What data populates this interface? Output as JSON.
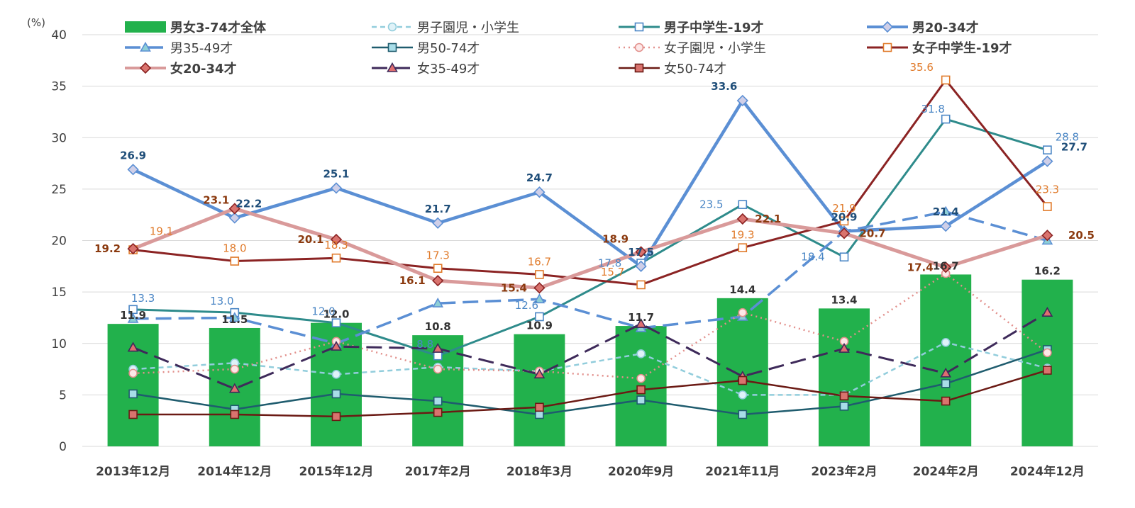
{
  "chart_data": {
    "type": "bar",
    "y_unit": "(%)",
    "categories": [
      "2013年12月",
      "2014年12月",
      "2015年12月",
      "2017年2月",
      "2018年3月",
      "2020年9月",
      "2021年11月",
      "2023年2月",
      "2024年2月",
      "2024年12月"
    ],
    "ylim": [
      0,
      40
    ],
    "yticks": [
      0,
      5,
      10,
      15,
      20,
      25,
      30,
      35,
      40
    ],
    "grid": true,
    "legend_position": "top",
    "series": [
      {
        "name": "男女3-74才全体",
        "kind": "bar",
        "color": "#22b14c",
        "label_color": "#333333",
        "label_bold": true,
        "legend_bold": true,
        "values": [
          11.9,
          11.5,
          12.0,
          10.8,
          10.9,
          11.7,
          14.4,
          13.4,
          16.7,
          16.2
        ],
        "labeled": [
          true,
          true,
          true,
          true,
          true,
          true,
          true,
          true,
          true,
          true
        ]
      },
      {
        "name": "男子園児・小学生",
        "kind": "line",
        "color": "#92cddc",
        "dash": "short",
        "marker": "circle",
        "marker_fill": "#dff2f8",
        "width": 2.5,
        "values": [
          7.5,
          8.1,
          7.0,
          7.7,
          7.3,
          9.0,
          5.0,
          5.0,
          10.1,
          7.6
        ]
      },
      {
        "name": "男子中学生-19才",
        "kind": "line",
        "color": "#2e8b8b",
        "dash": "solid",
        "marker": "square",
        "marker_fill": "#ffffff",
        "marker_stroke": "#4a86c5",
        "width": 3,
        "label_color": "#4a86c5",
        "legend_bold": true,
        "legend_color": "#4a86c5",
        "values": [
          13.3,
          13.0,
          12.0,
          8.8,
          12.6,
          17.8,
          23.5,
          18.4,
          31.8,
          28.8
        ],
        "labeled": [
          true,
          true,
          true,
          true,
          true,
          true,
          true,
          true,
          true,
          true
        ]
      },
      {
        "name": "男20-34才",
        "kind": "line",
        "color": "#5b8fd4",
        "dash": "solid",
        "marker": "diamond",
        "marker_fill": "#cfcfe8",
        "width": 4.5,
        "label_color": "#1f4e79",
        "label_bold": true,
        "legend_bold": true,
        "legend_color": "#1f4e79",
        "values": [
          26.9,
          22.2,
          25.1,
          21.7,
          24.7,
          17.5,
          33.6,
          20.9,
          21.4,
          27.7
        ],
        "labeled": [
          true,
          true,
          true,
          true,
          true,
          true,
          true,
          true,
          true,
          true
        ]
      },
      {
        "name": "男35-49才",
        "kind": "line",
        "color": "#5b8fd4",
        "dash": "long",
        "marker": "triangle",
        "marker_fill": "#8ecfd6",
        "width": 3.5,
        "values": [
          12.4,
          12.5,
          10.0,
          13.9,
          14.3,
          11.5,
          12.6,
          20.9,
          22.8,
          20.0
        ]
      },
      {
        "name": "男50-74才",
        "kind": "line",
        "color": "#1f5c6e",
        "dash": "solid",
        "marker": "square",
        "marker_fill": "#a8dde8",
        "width": 2.5,
        "values": [
          5.1,
          3.6,
          5.1,
          4.4,
          3.1,
          4.5,
          3.1,
          3.9,
          6.1,
          9.4
        ]
      },
      {
        "name": "女子園児・小学生",
        "kind": "line",
        "color": "#e2908c",
        "dash": "dot",
        "marker": "circle",
        "marker_fill": "#fde8e8",
        "width": 2.5,
        "values": [
          7.1,
          7.5,
          10.2,
          7.5,
          7.3,
          6.6,
          13.0,
          10.2,
          16.8,
          9.1
        ]
      },
      {
        "name": "女子中学生-19才",
        "kind": "line",
        "color": "#8b2323",
        "dash": "solid",
        "marker": "square",
        "marker_fill": "#ffffff",
        "marker_stroke": "#e07a2a",
        "width": 3,
        "label_color": "#e07a2a",
        "legend_bold": true,
        "values": [
          19.1,
          18.0,
          18.3,
          17.3,
          16.7,
          15.7,
          19.3,
          21.9,
          35.6,
          23.3
        ],
        "labeled": [
          true,
          true,
          true,
          true,
          true,
          true,
          true,
          true,
          true,
          true
        ]
      },
      {
        "name": "女20-34才",
        "kind": "line",
        "color": "#d99a9a",
        "dash": "solid",
        "marker": "diamond",
        "marker_fill": "#d9736e",
        "marker_stroke": "#8b2323",
        "width": 5,
        "label_color": "#8b3a0f",
        "label_bold": true,
        "legend_bold": true,
        "legend_color": "#8b3a0f",
        "values": [
          19.2,
          23.1,
          20.1,
          16.1,
          15.4,
          18.9,
          22.1,
          20.7,
          17.4,
          20.5
        ],
        "labeled": [
          true,
          true,
          true,
          true,
          true,
          true,
          true,
          true,
          true,
          true
        ]
      },
      {
        "name": "女35-49才",
        "kind": "line",
        "color": "#3e2a5a",
        "dash": "long",
        "marker": "triangle",
        "marker_fill": "#e06e70",
        "width": 3,
        "values": [
          9.6,
          5.6,
          9.7,
          9.5,
          7.0,
          11.9,
          6.8,
          9.5,
          7.1,
          13.0
        ]
      },
      {
        "name": "女50-74才",
        "kind": "line",
        "color": "#6b1a14",
        "dash": "solid",
        "marker": "square",
        "marker_fill": "#d9736e",
        "width": 2.5,
        "values": [
          3.1,
          3.1,
          2.9,
          3.3,
          3.8,
          5.5,
          6.4,
          4.9,
          4.4,
          7.4
        ]
      }
    ]
  }
}
